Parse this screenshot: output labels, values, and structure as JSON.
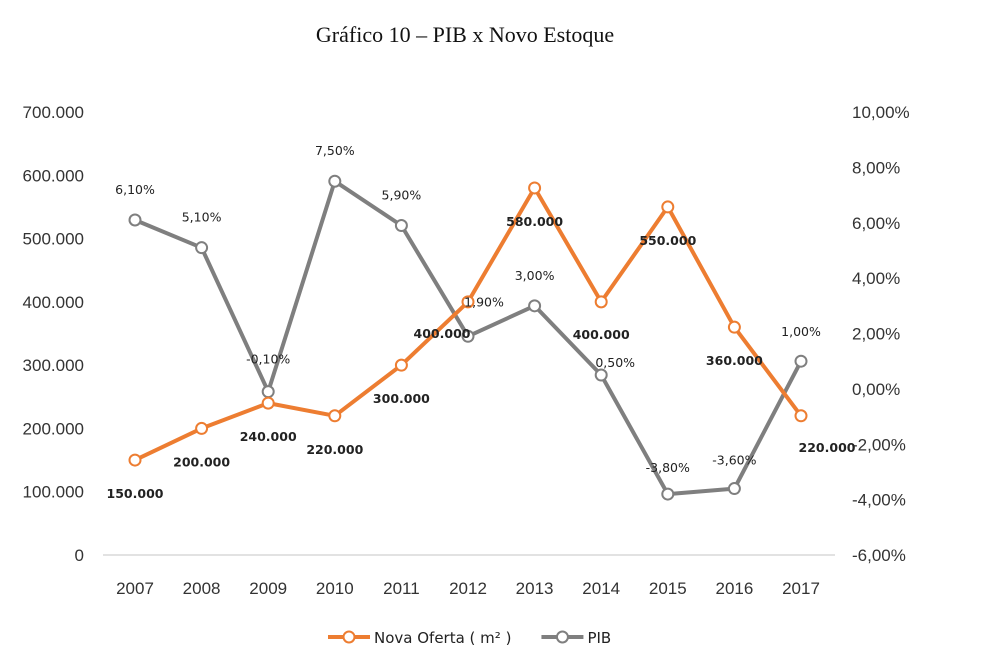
{
  "chart_data": {
    "type": "line",
    "title": "Gráfico 10 – PIB x Novo Estoque",
    "categories": [
      "2007",
      "2008",
      "2009",
      "2010",
      "2011",
      "2012",
      "2013",
      "2014",
      "2015",
      "2016",
      "2017"
    ],
    "series": [
      {
        "name": "Nova Oferta ( m² )",
        "axis": "left",
        "color": "#ED7D31",
        "values": [
          150000,
          200000,
          240000,
          220000,
          300000,
          400000,
          580000,
          400000,
          550000,
          360000,
          220000
        ],
        "labels": [
          "150.000",
          "200.000",
          "240.000",
          "220.000",
          "300.000",
          "400.000",
          "580.000",
          "400.000",
          "550.000",
          "360.000",
          "220.000"
        ]
      },
      {
        "name": "PIB",
        "axis": "right",
        "color": "#7F7F7F",
        "values": [
          6.1,
          5.1,
          -0.1,
          7.5,
          5.9,
          1.9,
          3.0,
          0.5,
          -3.8,
          -3.6,
          1.0
        ],
        "labels": [
          "6,10%",
          "5,10%",
          "-0,10%",
          "7,50%",
          "5,90%",
          "1,90%",
          "3,00%",
          "0,50%",
          "-3,80%",
          "-3,60%",
          "1,00%"
        ]
      }
    ],
    "y_left": {
      "range": [
        0,
        700000
      ],
      "ticks": [
        0,
        100000,
        200000,
        300000,
        400000,
        500000,
        600000,
        700000
      ],
      "tick_labels": [
        "0",
        "100.000",
        "200.000",
        "300.000",
        "400.000",
        "500.000",
        "600.000",
        "700.000"
      ]
    },
    "y_right": {
      "range": [
        -6,
        10
      ],
      "ticks": [
        -6,
        -4,
        -2,
        0,
        2,
        4,
        6,
        8,
        10
      ],
      "tick_labels": [
        "-6,00%",
        "-4,00%",
        "-2,00%",
        "0,00%",
        "2,00%",
        "4,00%",
        "6,00%",
        "8,00%",
        "10,00%"
      ]
    },
    "grid": false,
    "legend_position": "bottom"
  }
}
